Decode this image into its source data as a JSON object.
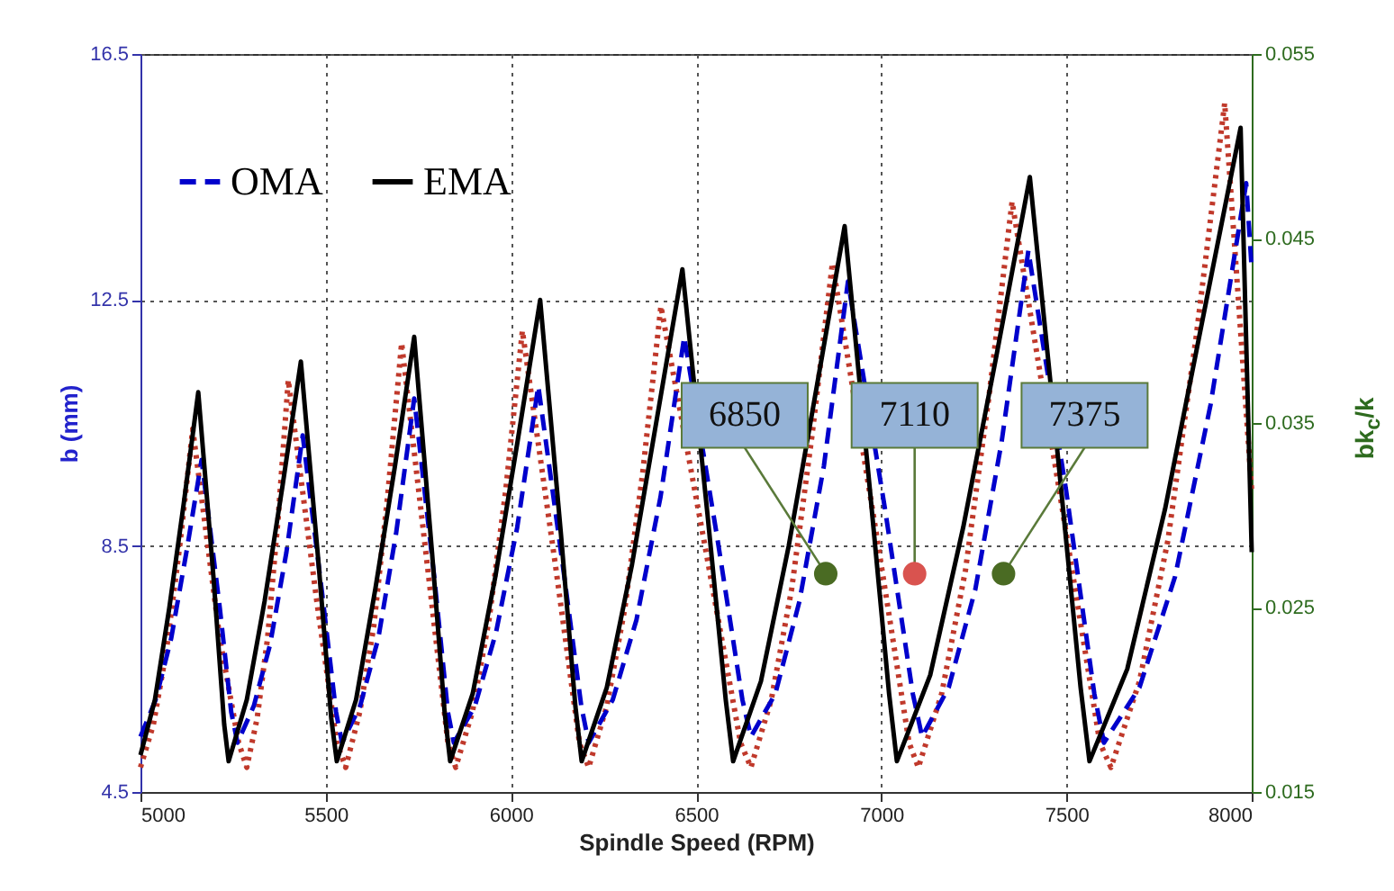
{
  "chart_data": {
    "type": "line",
    "xlabel": "Spindle Speed (RPM)",
    "ylabel": "b (mm)",
    "y2label": "bk$_{c}$/k",
    "xlim": [
      5000,
      8000
    ],
    "xticks": [
      5000,
      5500,
      6000,
      6500,
      7000,
      7500,
      8000
    ],
    "ylim": [
      4.5,
      16.5
    ],
    "yticks": [
      4.5,
      8.5,
      12.5,
      16.5
    ],
    "y2lim": [
      0.015,
      0.055
    ],
    "y2ticks": [
      0.015,
      0.025,
      0.035,
      0.045,
      0.055
    ],
    "grid": true,
    "legend": "top left",
    "series": [
      {
        "color": "#c0392b",
        "line_style": "dotted",
        "x": [
          5000,
          5035,
          5070,
          5106,
          5141,
          5214,
          5265,
          5287,
          5315,
          5343,
          5371,
          5399,
          5476,
          5530,
          5554,
          5592,
          5630,
          5667,
          5705,
          5778,
          5830,
          5851,
          5896,
          5941,
          5986,
          6031,
          6120,
          6185,
          6210,
          6259,
          6308,
          6356,
          6405,
          6527,
          6620,
          6648,
          6703,
          6758,
          6813,
          6868,
          6984,
          7075,
          7100,
          7163,
          7227,
          7290,
          7353,
          7486,
          7590,
          7620,
          7697,
          7774,
          7850,
          7927,
          8000
        ],
        "values": [
          4.9,
          5.6,
          6.8,
          8.5,
          10.4,
          7.0,
          5.3,
          4.9,
          5.7,
          7.0,
          8.9,
          11.2,
          7.6,
          5.3,
          4.9,
          5.8,
          7.2,
          9.3,
          11.8,
          8.0,
          5.3,
          4.9,
          5.8,
          7.3,
          9.4,
          12.0,
          8.2,
          5.3,
          4.9,
          5.9,
          7.5,
          9.7,
          12.4,
          8.4,
          5.3,
          4.9,
          6.0,
          7.8,
          10.3,
          13.1,
          8.8,
          5.3,
          4.9,
          6.1,
          8.1,
          10.9,
          14.1,
          9.2,
          5.3,
          4.9,
          6.3,
          8.6,
          11.9,
          15.7,
          9.4
        ]
      },
      {
        "name": "OMA",
        "color": "#0000cc",
        "line_style": "dashed",
        "x": [
          5000,
          5041,
          5083,
          5124,
          5165,
          5214,
          5245,
          5262,
          5306,
          5350,
          5394,
          5438,
          5491,
          5528,
          5544,
          5593,
          5642,
          5690,
          5739,
          5793,
          5830,
          5846,
          5903,
          5960,
          6017,
          6074,
          6142,
          6190,
          6210,
          6275,
          6339,
          6404,
          6468,
          6558,
          6625,
          6648,
          6714,
          6779,
          6845,
          6910,
          7010,
          7085,
          7110,
          7182,
          7254,
          7325,
          7397,
          7499,
          7575,
          7601,
          7697,
          7793,
          7889,
          7985,
          8000
        ],
        "values": [
          5.4,
          6.0,
          7.0,
          8.4,
          9.9,
          7.5,
          5.8,
          5.3,
          5.9,
          6.9,
          8.4,
          10.3,
          7.7,
          5.8,
          5.3,
          5.9,
          7.0,
          8.7,
          10.9,
          8.0,
          5.8,
          5.3,
          5.9,
          7.1,
          8.8,
          11.1,
          8.1,
          5.9,
          5.3,
          6.0,
          7.3,
          9.3,
          11.9,
          8.6,
          6.0,
          5.4,
          6.1,
          7.6,
          9.8,
          12.8,
          9.1,
          6.1,
          5.4,
          6.2,
          7.8,
          10.2,
          13.3,
          9.4,
          6.1,
          5.3,
          6.2,
          8.0,
          10.8,
          14.4,
          13.0
        ]
      },
      {
        "name": "EMA",
        "color": "#000000",
        "line_style": "solid",
        "x": [
          5000,
          5039,
          5078,
          5117,
          5156,
          5197,
          5226,
          5238,
          5287,
          5335,
          5384,
          5433,
          5481,
          5515,
          5530,
          5582,
          5634,
          5687,
          5739,
          5787,
          5821,
          5836,
          5897,
          5958,
          6018,
          6079,
          6135,
          6174,
          6191,
          6259,
          6327,
          6395,
          6463,
          6531,
          6580,
          6600,
          6675,
          6750,
          6826,
          6901,
          6971,
          7021,
          7042,
          7132,
          7221,
          7311,
          7401,
          7481,
          7538,
          7562,
          7664,
          7766,
          7868,
          7970,
          8000
        ],
        "values": [
          5.1,
          6.0,
          7.5,
          9.2,
          11.0,
          8.0,
          5.6,
          5.0,
          6.0,
          7.6,
          9.5,
          11.5,
          8.2,
          5.7,
          5.0,
          6.0,
          7.8,
          9.8,
          11.9,
          8.4,
          5.8,
          5.0,
          6.1,
          8.0,
          10.2,
          12.5,
          8.7,
          5.9,
          5.0,
          6.2,
          8.2,
          10.6,
          13.0,
          9.0,
          6.0,
          5.0,
          6.3,
          8.5,
          11.1,
          13.7,
          9.3,
          6.1,
          5.0,
          6.4,
          8.8,
          11.6,
          14.5,
          9.7,
          6.2,
          5.0,
          6.5,
          9.1,
          12.2,
          15.3,
          8.4
        ]
      },
      {
        "type": "scatter",
        "x": [
          6850,
          7090,
          7330
        ],
        "values": [
          8.05,
          8.05,
          8.05
        ],
        "colors": [
          "#4a6b23",
          "#d9534f",
          "#4a6b23"
        ]
      }
    ],
    "annotations": [
      {
        "text": "6850",
        "x": 6850,
        "y": 8.05
      },
      {
        "text": "7110",
        "x": 7090,
        "y": 8.05
      },
      {
        "text": "7375",
        "x": 7330,
        "y": 8.05
      }
    ]
  }
}
